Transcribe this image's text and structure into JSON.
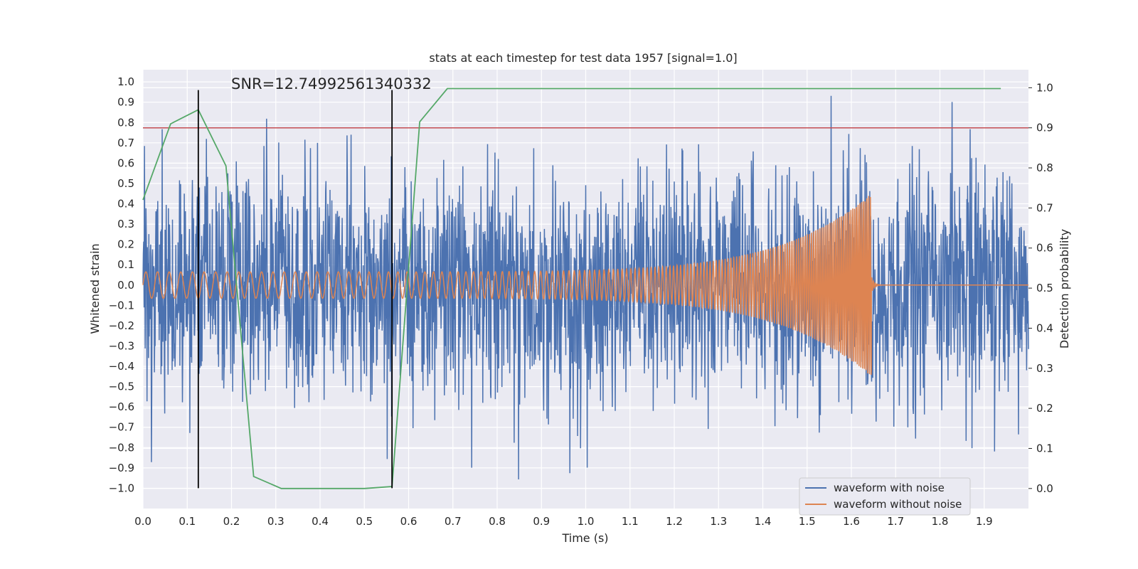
{
  "chart_data": {
    "type": "line",
    "title": "stats at each timestep for test data 1957 [signal=1.0]",
    "annotation": "SNR=12.74992561340332",
    "xlabel": "Time (s)",
    "ylabel": "Whitened strain",
    "ylabel_right": "Detection probability",
    "xlim": [
      0.0,
      2.0
    ],
    "ylim": [
      -1.1,
      1.06
    ],
    "ylim_right": [
      -0.05,
      1.045
    ],
    "x_ticks": [
      "0.0",
      "0.1",
      "0.2",
      "0.3",
      "0.4",
      "0.5",
      "0.6",
      "0.7",
      "0.8",
      "0.9",
      "1.0",
      "1.1",
      "1.2",
      "1.3",
      "1.4",
      "1.5",
      "1.6",
      "1.7",
      "1.8",
      "1.9"
    ],
    "y_ticks": [
      "1.0",
      "0.9",
      "0.8",
      "0.7",
      "0.6",
      "0.5",
      "0.4",
      "0.3",
      "0.2",
      "0.1",
      "0.0",
      "−0.1",
      "−0.2",
      "−0.3",
      "−0.4",
      "−0.5",
      "−0.6",
      "−0.7",
      "−0.8",
      "−0.9",
      "−1.0"
    ],
    "y_right_ticks": [
      "1.0",
      "0.9",
      "0.8",
      "0.7",
      "0.6",
      "0.5",
      "0.4",
      "0.3",
      "0.2",
      "0.1",
      "0.0"
    ],
    "series": [
      {
        "name": "waveform with noise",
        "color": "#4c72b0",
        "axis": "left",
        "description": "whitened strain with noise, ~2048 samples/s, amplitude roughly within ±1"
      },
      {
        "name": "waveform without noise",
        "color": "#dd8452",
        "axis": "left",
        "chirp": {
          "t_merger": 1.645,
          "f_start_hz": 38,
          "f_end_hz": 260,
          "amp_start": 0.065,
          "amp_peak": 0.45
        }
      },
      {
        "name": "detection probability",
        "color": "#55a868",
        "axis": "right",
        "x": [
          0.0,
          0.0625,
          0.125,
          0.1875,
          0.25,
          0.3125,
          0.375,
          0.4375,
          0.5,
          0.5625,
          0.625,
          0.6875,
          0.75,
          1.0,
          1.25,
          1.5,
          1.75,
          1.9375
        ],
        "y": [
          0.72,
          0.91,
          0.945,
          0.805,
          0.03,
          0.0,
          0.0,
          0.0,
          0.0,
          0.005,
          0.915,
          0.998,
          0.998,
          0.998,
          0.998,
          0.998,
          0.998,
          0.998
        ]
      }
    ],
    "threshold": {
      "value": 0.9,
      "axis": "right",
      "color": "#c44e52"
    },
    "vertical_markers": {
      "x": [
        0.125,
        0.5625
      ],
      "y_range": [
        -1.0,
        0.96
      ],
      "color": "#000000"
    },
    "legend": {
      "position": "lower-right",
      "entries": [
        "waveform with noise",
        "waveform without noise"
      ]
    },
    "grid": true,
    "background": "#eaeaf2"
  }
}
